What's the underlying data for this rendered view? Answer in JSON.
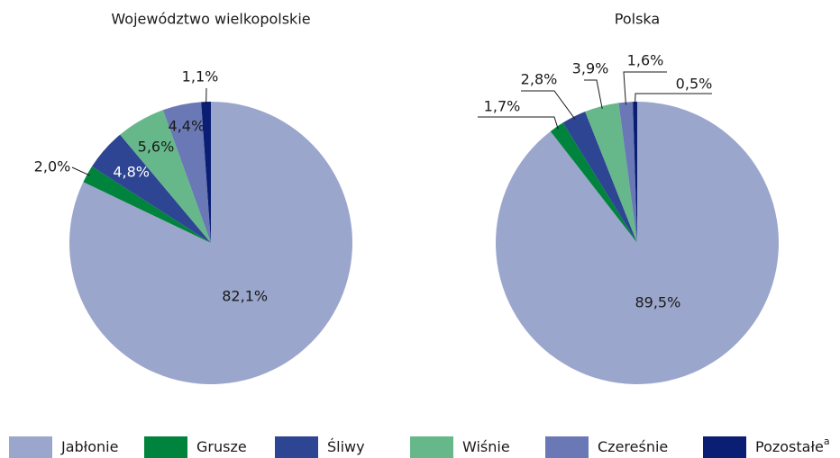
{
  "chart_data": [
    {
      "type": "pie",
      "title": "Województwo wielkopolskie",
      "categories": [
        "Jabłonie",
        "Grusze",
        "Śliwy",
        "Wiśnie",
        "Czereśnie",
        "Pozostałe"
      ],
      "category_superscripts": [
        null,
        null,
        null,
        null,
        null,
        "a"
      ],
      "values": [
        82.1,
        2.0,
        4.8,
        5.6,
        4.4,
        1.1
      ],
      "value_labels": [
        "82,1%",
        "2,0%",
        "4,8%",
        "5,6%",
        "4,4%",
        "1,1%"
      ],
      "colors": [
        "#9ba6cc",
        "#00843d",
        "#2e4593",
        "#66b88a",
        "#6a79b5",
        "#0a1f74"
      ]
    },
    {
      "type": "pie",
      "title": "Polska",
      "categories": [
        "Jabłonie",
        "Grusze",
        "Śliwy",
        "Wiśnie",
        "Czereśnie",
        "Pozostałe"
      ],
      "values": [
        89.5,
        1.7,
        2.8,
        3.9,
        1.6,
        0.5
      ],
      "value_labels": [
        "89,5%",
        "1,7%",
        "2,8%",
        "3,9%",
        "1,6%",
        "0,5%"
      ],
      "colors": [
        "#9ba6cc",
        "#00843d",
        "#2e4593",
        "#66b88a",
        "#6a79b5",
        "#0a1f74"
      ]
    }
  ]
}
